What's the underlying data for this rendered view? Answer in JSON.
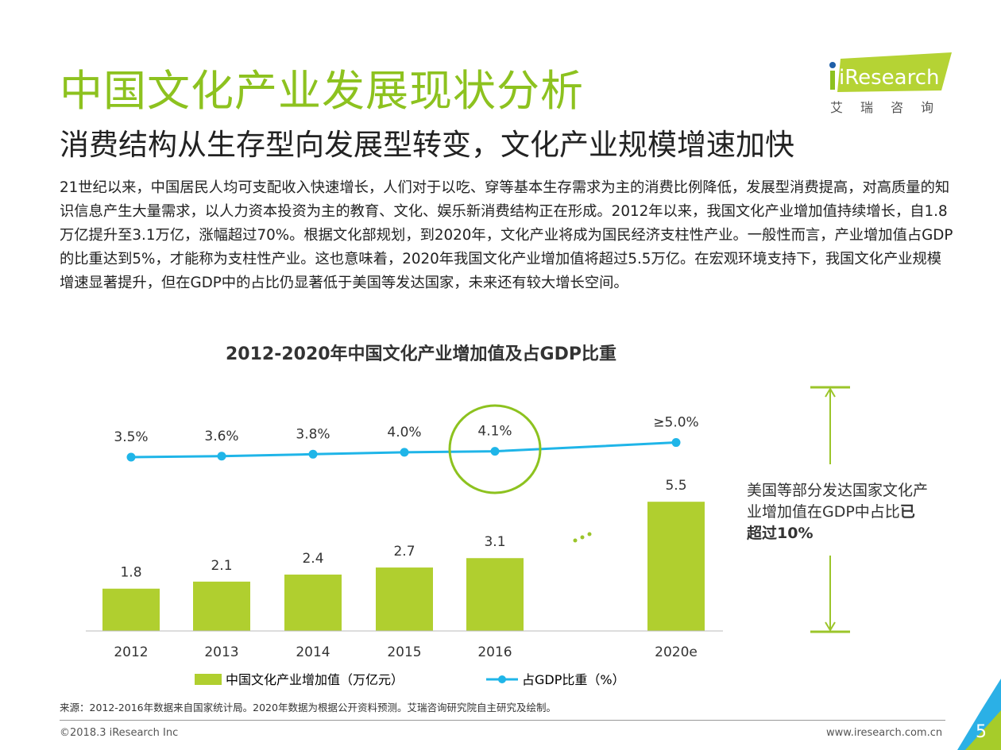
{
  "header": {
    "title": "中国文化产业发展现状分析",
    "subtitle": "消费结构从生存型向发展型转变，文化产业规模增速加快",
    "logo_text": "iResearch",
    "logo_cn": "艾瑞咨询"
  },
  "body_text": "21世纪以来，中国居民人均可支配收入快速增长，人们对于以吃、穿等基本生存需求为主的消费比例降低，发展型消费提高，对高质量的知识信息产生大量需求，以人力资本投资为主的教育、文化、娱乐新消费结构正在形成。2012年以来，我国文化产业增加值持续增长，自1.8万亿提升至3.1万亿，涨幅超过70%。根据文化部规划，到2020年，文化产业将成为国民经济支柱性产业。一般性而言，产业增加值占GDP的比重达到5%，才能称为支柱性产业。这也意味着，2020年我国文化产业增加值将超过5.5万亿。在宏观环境支持下，我国文化产业规模增速显著提升，但在GDP中的占比仍显著低于美国等发达国家，未来还有较大增长空间。",
  "chart_data": {
    "type": "bar",
    "title": "2012-2020年中国文化产业增加值及占GDP比重",
    "categories": [
      "2012",
      "2013",
      "2014",
      "2015",
      "2016",
      "2020e"
    ],
    "series": [
      {
        "name": "中国文化产业增加值（万亿元）",
        "type": "bar",
        "values": [
          1.8,
          2.1,
          2.4,
          2.7,
          3.1,
          5.5
        ],
        "labels": [
          "1.8",
          "2.1",
          "2.4",
          "2.7",
          "3.1",
          "5.5"
        ],
        "color": "#b0cf2f"
      },
      {
        "name": "占GDP比重（%）",
        "type": "line",
        "values": [
          3.5,
          3.6,
          3.8,
          4.0,
          4.1,
          5.0
        ],
        "labels": [
          "3.5%",
          "3.6%",
          "3.8%",
          "4.0%",
          "4.1%",
          "≥5.0%"
        ],
        "color": "#1fb5e8"
      }
    ],
    "annotation": {
      "prefix": "美国等部分发达国家文化产业增加值在GDP中占比",
      "bold": "已超过10%"
    },
    "highlight_category": "2016"
  },
  "footer": {
    "source": "来源：2012-2016年数据来自国家统计局。2020年数据为根据公开资料预测。艾瑞咨询研究院自主研究及绘制。",
    "copyright": "©2018.3 iResearch Inc",
    "url": "www.iresearch.com.cn",
    "page": "5"
  }
}
